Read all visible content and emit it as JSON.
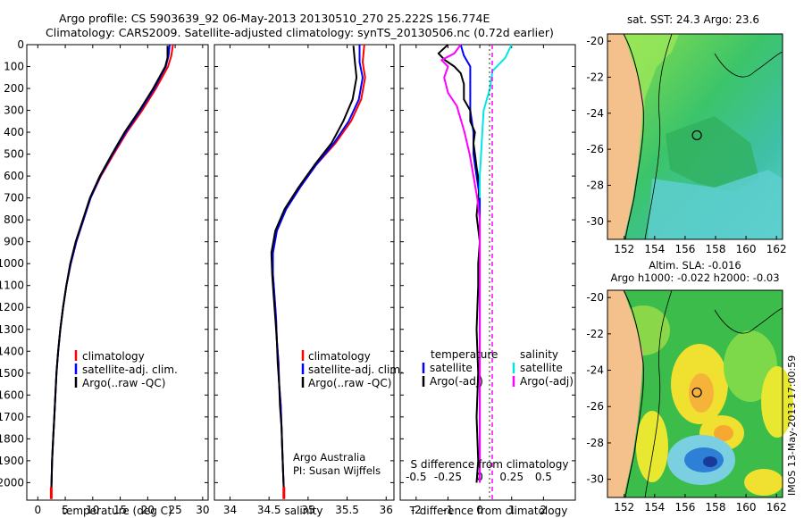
{
  "header": {
    "title_line1": "Argo profile: CS 5903639_92 06-May-2013 20130510_270 25.222S 156.774E",
    "title_line2": "Climatology: CARS2009. Satellite-adjusted climatology: synTS_20130506.nc (0.72d earlier)",
    "side_label": "IMOS 13-May-2013 17:00:59"
  },
  "maps": {
    "sst_title": "sat. SST: 24.3 Argo: 23.6",
    "sla_title1": "Altim. SLA: -0.016",
    "sla_title2": "Argo h1000: -0.022 h2000: -0.03",
    "lat_ticks": [
      -20,
      -22,
      -24,
      -26,
      -28,
      -30
    ],
    "lon_ticks": [
      152,
      154,
      156,
      158,
      160,
      162
    ],
    "argo_lat": -25.222,
    "argo_lon": 156.774
  },
  "chart_data": [
    {
      "type": "line",
      "id": "temperature",
      "xlabel": "temperature (deg C)",
      "ylabel": "",
      "xlim": [
        -2,
        31
      ],
      "ylim": [
        2080,
        0
      ],
      "xticks": [
        0,
        5,
        10,
        15,
        20,
        25,
        30
      ],
      "yticks": [
        0,
        100,
        200,
        300,
        400,
        500,
        600,
        700,
        800,
        900,
        1000,
        1100,
        1200,
        1300,
        1400,
        1500,
        1600,
        1700,
        1800,
        1900,
        2000
      ],
      "legend": [
        "climatology",
        "satellite-adj. clim.",
        "Argo(..raw -QC)"
      ],
      "series": [
        {
          "name": "climatology",
          "color": "#ff0000",
          "points": [
            [
              24.6,
              0
            ],
            [
              24.3,
              50
            ],
            [
              23.7,
              100
            ],
            [
              21.5,
              200
            ],
            [
              19.0,
              300
            ],
            [
              16.2,
              400
            ],
            [
              13.8,
              500
            ],
            [
              11.5,
              600
            ],
            [
              9.6,
              700
            ],
            [
              8.3,
              800
            ],
            [
              7.0,
              900
            ],
            [
              6.0,
              1000
            ],
            [
              5.2,
              1100
            ],
            [
              4.6,
              1200
            ],
            [
              4.1,
              1300
            ],
            [
              3.7,
              1400
            ],
            [
              3.4,
              1500
            ],
            [
              3.2,
              1600
            ],
            [
              3.0,
              1700
            ],
            [
              2.8,
              1800
            ],
            [
              2.6,
              1900
            ],
            [
              2.5,
              2000
            ],
            [
              2.45,
              2050
            ]
          ]
        },
        {
          "name": "satellite-adj. clim.",
          "color": "#0000ff",
          "points": [
            [
              24.0,
              0
            ],
            [
              23.8,
              50
            ],
            [
              23.3,
              100
            ],
            [
              21.2,
              200
            ],
            [
              18.7,
              300
            ],
            [
              16.0,
              400
            ],
            [
              13.6,
              500
            ],
            [
              11.4,
              600
            ],
            [
              9.6,
              700
            ],
            [
              8.3,
              800
            ],
            [
              7.0,
              900
            ],
            [
              6.0,
              1000
            ],
            [
              5.2,
              1100
            ],
            [
              4.6,
              1200
            ],
            [
              4.1,
              1300
            ],
            [
              3.7,
              1400
            ],
            [
              3.4,
              1500
            ],
            [
              3.2,
              1600
            ],
            [
              3.0,
              1700
            ],
            [
              2.8,
              1800
            ],
            [
              2.6,
              1900
            ],
            [
              2.5,
              2000
            ],
            [
              2.45,
              2040
            ]
          ]
        },
        {
          "name": "Argo(..raw -QC)",
          "color": "#000000",
          "points": [
            [
              23.6,
              5
            ],
            [
              23.6,
              60
            ],
            [
              23.2,
              100
            ],
            [
              21.0,
              200
            ],
            [
              18.5,
              300
            ],
            [
              15.8,
              400
            ],
            [
              13.5,
              500
            ],
            [
              11.3,
              600
            ],
            [
              9.5,
              700
            ],
            [
              8.2,
              800
            ],
            [
              6.9,
              900
            ],
            [
              5.9,
              1000
            ],
            [
              5.2,
              1100
            ],
            [
              4.6,
              1200
            ],
            [
              4.1,
              1300
            ],
            [
              3.7,
              1400
            ],
            [
              3.4,
              1500
            ],
            [
              3.2,
              1600
            ],
            [
              3.0,
              1700
            ],
            [
              2.8,
              1800
            ],
            [
              2.6,
              1900
            ],
            [
              2.5,
              2000
            ],
            [
              2.45,
              2040
            ]
          ]
        }
      ]
    },
    {
      "type": "line",
      "id": "salinity",
      "xlabel": "salinity",
      "xlim": [
        33.8,
        36.1
      ],
      "ylim": [
        2080,
        0
      ],
      "xticks": [
        34,
        34.5,
        35,
        35.5,
        36
      ],
      "legend": [
        "climatology",
        "satellite-adj. clim.",
        "Argo(..raw -QC)"
      ],
      "annotation1": "Argo Australia",
      "annotation2": "PI: Susan Wijffels",
      "series": [
        {
          "name": "climatology",
          "color": "#ff0000",
          "points": [
            [
              35.72,
              0
            ],
            [
              35.7,
              80
            ],
            [
              35.73,
              150
            ],
            [
              35.68,
              250
            ],
            [
              35.55,
              350
            ],
            [
              35.35,
              450
            ],
            [
              35.1,
              550
            ],
            [
              34.9,
              650
            ],
            [
              34.72,
              750
            ],
            [
              34.6,
              850
            ],
            [
              34.55,
              950
            ],
            [
              34.55,
              1050
            ],
            [
              34.57,
              1150
            ],
            [
              34.59,
              1250
            ],
            [
              34.6,
              1350
            ],
            [
              34.62,
              1450
            ],
            [
              34.63,
              1550
            ],
            [
              34.65,
              1650
            ],
            [
              34.66,
              1750
            ],
            [
              34.67,
              1850
            ],
            [
              34.68,
              1950
            ],
            [
              34.69,
              2050
            ]
          ]
        },
        {
          "name": "satellite-adj. clim.",
          "color": "#0000ff",
          "points": [
            [
              35.66,
              0
            ],
            [
              35.66,
              80
            ],
            [
              35.7,
              150
            ],
            [
              35.65,
              250
            ],
            [
              35.52,
              350
            ],
            [
              35.33,
              450
            ],
            [
              35.1,
              550
            ],
            [
              34.9,
              650
            ],
            [
              34.72,
              750
            ],
            [
              34.6,
              850
            ],
            [
              34.55,
              950
            ],
            [
              34.55,
              1050
            ],
            [
              34.57,
              1150
            ],
            [
              34.59,
              1250
            ],
            [
              34.6,
              1350
            ],
            [
              34.62,
              1450
            ],
            [
              34.63,
              1550
            ],
            [
              34.65,
              1650
            ],
            [
              34.66,
              1750
            ],
            [
              34.67,
              1850
            ],
            [
              34.68,
              1950
            ],
            [
              34.69,
              2040
            ]
          ]
        },
        {
          "name": "Argo(..raw -QC)",
          "color": "#000000",
          "points": [
            [
              35.58,
              5
            ],
            [
              35.6,
              80
            ],
            [
              35.62,
              150
            ],
            [
              35.57,
              250
            ],
            [
              35.45,
              350
            ],
            [
              35.3,
              450
            ],
            [
              35.08,
              550
            ],
            [
              34.88,
              650
            ],
            [
              34.7,
              750
            ],
            [
              34.58,
              850
            ],
            [
              34.53,
              950
            ],
            [
              34.54,
              1050
            ],
            [
              34.56,
              1150
            ],
            [
              34.58,
              1250
            ],
            [
              34.6,
              1350
            ],
            [
              34.61,
              1450
            ],
            [
              34.63,
              1550
            ],
            [
              34.64,
              1650
            ],
            [
              34.66,
              1750
            ],
            [
              34.67,
              1850
            ],
            [
              34.68,
              1950
            ],
            [
              34.69,
              2040
            ]
          ]
        }
      ]
    },
    {
      "type": "line",
      "id": "difference",
      "xlabel": "T difference from climatology",
      "xlabel_top": "S difference from climatology",
      "xlim": [
        -2.5,
        3.0
      ],
      "ylim": [
        2080,
        0
      ],
      "xticks": [
        -2,
        -1,
        0,
        1,
        2
      ],
      "sticks_labels": [
        "-0.5",
        "-0.25",
        "0",
        "0.25",
        "0.5"
      ],
      "sticks_values": [
        -0.5,
        -0.25,
        0,
        0.25,
        0.5
      ],
      "legend_temp_title": "temperature",
      "legend_sal_title": "salinity",
      "legend": [
        "satellite",
        "Argo(-adj)",
        "satellite",
        "Argo(-adj)"
      ],
      "series": [
        {
          "name": "T satellite",
          "color": "#0000ff",
          "points": [
            [
              -0.6,
              0
            ],
            [
              -0.5,
              50
            ],
            [
              -0.3,
              100
            ],
            [
              -0.3,
              200
            ],
            [
              -0.3,
              300
            ],
            [
              -0.2,
              400
            ],
            [
              -0.2,
              500
            ],
            [
              -0.1,
              600
            ],
            [
              0.0,
              700
            ],
            [
              0.0,
              800
            ],
            [
              0.0,
              900
            ],
            [
              0.0,
              1000
            ],
            [
              0.0,
              1200
            ],
            [
              0.0,
              1400
            ],
            [
              0.0,
              1600
            ],
            [
              0.0,
              1800
            ],
            [
              0.0,
              2000
            ]
          ]
        },
        {
          "name": "T Argo(-adj)",
          "color": "#000000",
          "points": [
            [
              -1.0,
              0
            ],
            [
              -1.3,
              40
            ],
            [
              -1.1,
              70
            ],
            [
              -0.8,
              100
            ],
            [
              -0.6,
              130
            ],
            [
              -0.5,
              180
            ],
            [
              -0.5,
              250
            ],
            [
              -0.3,
              300
            ],
            [
              -0.3,
              350
            ],
            [
              -0.15,
              400
            ],
            [
              -0.2,
              450
            ],
            [
              -0.15,
              500
            ],
            [
              -0.1,
              560
            ],
            [
              0.0,
              650
            ],
            [
              -0.05,
              700
            ],
            [
              -0.1,
              780
            ],
            [
              0.0,
              900
            ],
            [
              -0.05,
              1000
            ],
            [
              -0.05,
              1100
            ],
            [
              -0.1,
              1300
            ],
            [
              -0.05,
              1500
            ],
            [
              -0.1,
              1700
            ],
            [
              -0.05,
              1900
            ],
            [
              -0.1,
              2000
            ]
          ]
        },
        {
          "name": "S satellite",
          "color": "#00e6e6",
          "points": [
            [
              0.25,
              0
            ],
            [
              0.2,
              60
            ],
            [
              0.1,
              120
            ],
            [
              0.08,
              200
            ],
            [
              0.03,
              300
            ],
            [
              0.02,
              400
            ],
            [
              0.01,
              500
            ],
            [
              0.0,
              600
            ],
            [
              0.0,
              700
            ]
          ]
        },
        {
          "name": "S Argo(-adj)",
          "color": "#ff00ff",
          "points": [
            [
              -0.15,
              0
            ],
            [
              -0.2,
              40
            ],
            [
              -0.3,
              70
            ],
            [
              -0.25,
              100
            ],
            [
              -0.28,
              150
            ],
            [
              -0.25,
              220
            ],
            [
              -0.18,
              280
            ],
            [
              -0.15,
              340
            ],
            [
              -0.12,
              400
            ],
            [
              -0.1,
              450
            ],
            [
              -0.08,
              500
            ],
            [
              -0.05,
              600
            ],
            [
              -0.02,
              700
            ],
            [
              0.0,
              800
            ],
            [
              0.0,
              1000
            ],
            [
              0.0,
              1300
            ],
            [
              0.0,
              1600
            ],
            [
              0.0,
              2000
            ]
          ]
        }
      ]
    }
  ]
}
